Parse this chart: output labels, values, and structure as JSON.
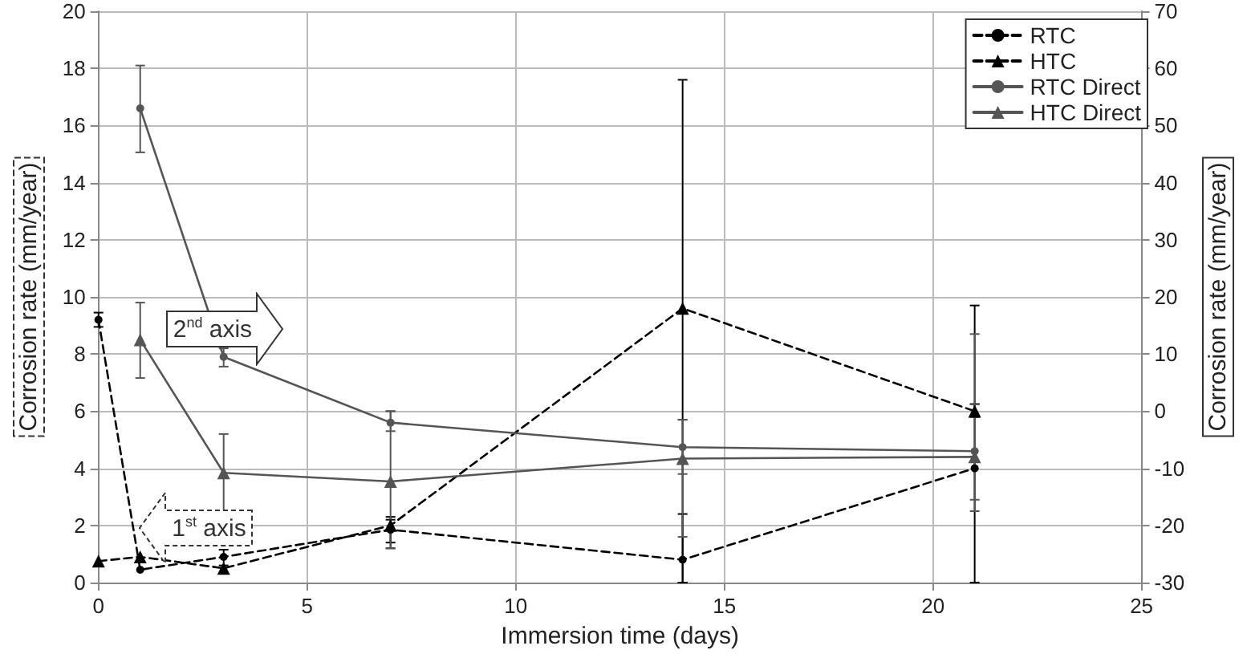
{
  "chart_data": {
    "type": "line",
    "xlabel": "Immersion time (days)",
    "ylabel": "Corrosion rate (mm/year)",
    "y2label": "Corrosion rate (mm/year)",
    "xlim": [
      0,
      25
    ],
    "xticks": [
      0,
      5,
      10,
      15,
      20,
      25
    ],
    "ylim": [
      0,
      20
    ],
    "yticks": [
      0,
      2,
      4,
      6,
      8,
      10,
      12,
      14,
      16,
      18,
      20
    ],
    "y2lim": [
      -30,
      70
    ],
    "y2ticks": [
      -30,
      -20,
      -10,
      0,
      10,
      20,
      30,
      40,
      50,
      60,
      70
    ],
    "grid": true,
    "legend": "top right",
    "annotations": [
      "2$^{nd}$ axis",
      "1$^{st}$ axis"
    ],
    "series": [
      {
        "name": "RTC",
        "color": "#000000",
        "marker": "circle",
        "line_style": "dashed",
        "x": [
          0,
          1,
          3,
          7,
          14,
          21
        ],
        "values": [
          9.2,
          0.45,
          0.9,
          1.85,
          0.8,
          4.0
        ],
        "errors": [
          [
            8.95,
            9.45
          ],
          null,
          [
            0.6,
            1.15
          ],
          [
            1.2,
            2.3
          ],
          [
            0,
            2.4
          ],
          [
            0,
            9.7
          ]
        ]
      },
      {
        "name": "HTC",
        "color": "#000000",
        "marker": "triangle",
        "line_style": "dashed",
        "x": [
          0,
          1,
          3,
          7,
          14,
          21
        ],
        "values": [
          0.75,
          0.9,
          0.5,
          2.0,
          9.6,
          6.0
        ],
        "errors": [
          null,
          null,
          null,
          [
            1.4,
            2.2
          ],
          [
            0,
            17.6
          ],
          [
            5.8,
            6.25
          ]
        ]
      },
      {
        "name": "RTC Direct",
        "color": "#555555",
        "marker": "circle",
        "line_style": "solid",
        "axis": "y2",
        "x": [
          1,
          3,
          7,
          14,
          21
        ],
        "values": [
          53,
          9.5,
          -2,
          -6.3,
          -7
        ],
        "errors": [
          [
            45.3,
            60.5
          ],
          [
            7.8,
            11
          ],
          [
            -3.5,
            0
          ],
          [
            -11,
            -1.5
          ],
          [
            -15.5,
            1.2
          ]
        ]
      },
      {
        "name": "HTC Direct",
        "color": "#555555",
        "marker": "triangle",
        "line_style": "solid",
        "axis": "y2",
        "x": [
          1,
          3,
          7,
          14,
          21
        ],
        "values": [
          12.5,
          -10.8,
          -12.3,
          -8.3,
          -8
        ],
        "errors": [
          [
            5.8,
            19
          ],
          [
            -17.5,
            -4
          ],
          [
            -24,
            0
          ],
          [
            -22,
            -1.5
          ],
          [
            -17.5,
            13.5
          ]
        ]
      }
    ]
  }
}
